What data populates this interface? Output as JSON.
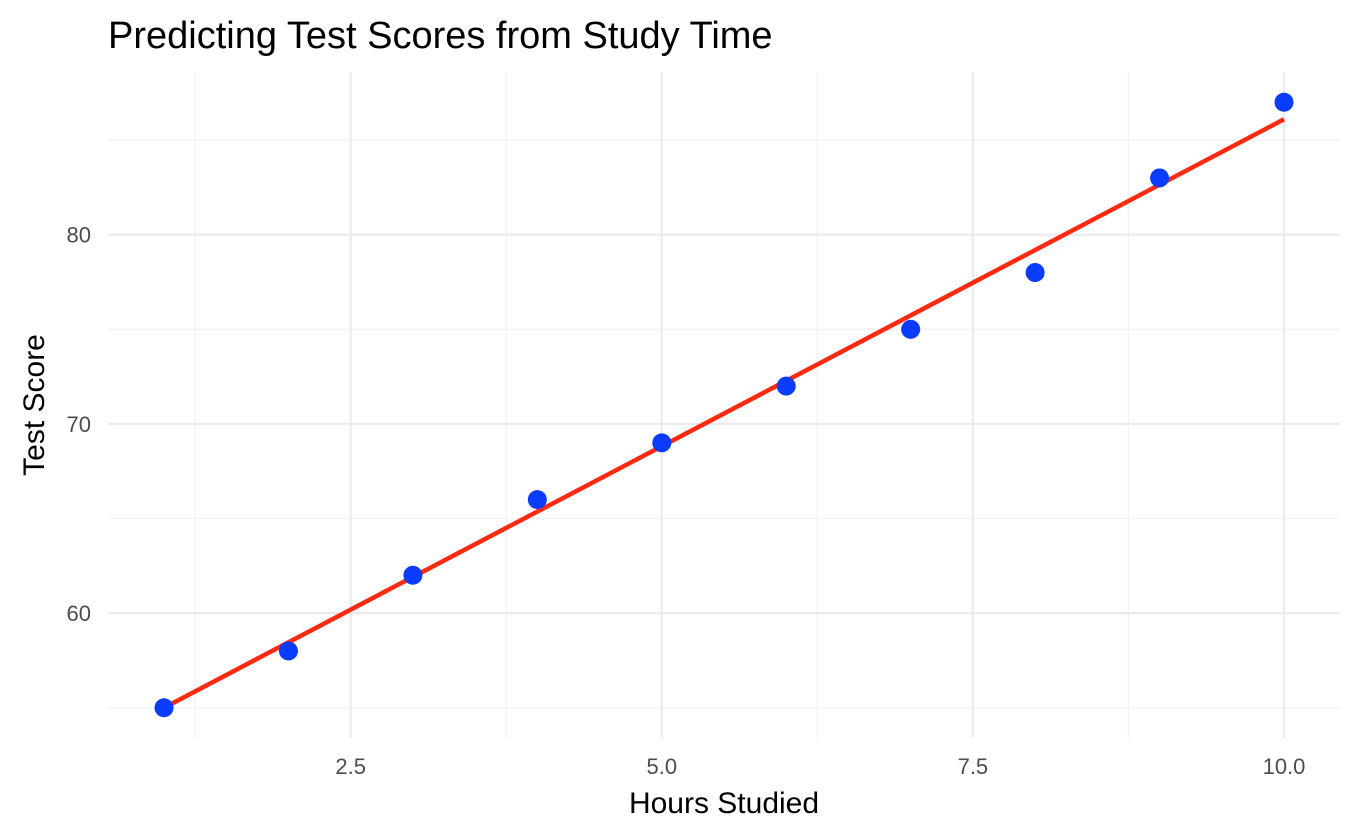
{
  "chart_data": {
    "type": "scatter",
    "title": "Predicting Test Scores from Study Time",
    "xlabel": "Hours Studied",
    "ylabel": "Test Score",
    "xlim": [
      0.55,
      10.45
    ],
    "ylim": [
      53.4,
      88.6
    ],
    "x_ticks": [
      2.5,
      5.0,
      7.5,
      10.0
    ],
    "x_tick_labels": [
      "2.5",
      "5.0",
      "7.5",
      "10.0"
    ],
    "y_ticks": [
      60,
      70,
      80
    ],
    "y_tick_labels": [
      "60",
      "70",
      "80"
    ],
    "grid": true,
    "series": [
      {
        "kind": "points",
        "color": "#0a3cff",
        "x": [
          1,
          2,
          3,
          4,
          5,
          6,
          7,
          8,
          9,
          10
        ],
        "y": [
          55,
          58,
          62,
          66,
          69,
          72,
          75,
          78,
          83,
          87
        ]
      },
      {
        "kind": "regression-line",
        "color": "#ff2a10",
        "x": [
          1,
          10
        ],
        "y": [
          55.0,
          86.1
        ]
      }
    ]
  }
}
